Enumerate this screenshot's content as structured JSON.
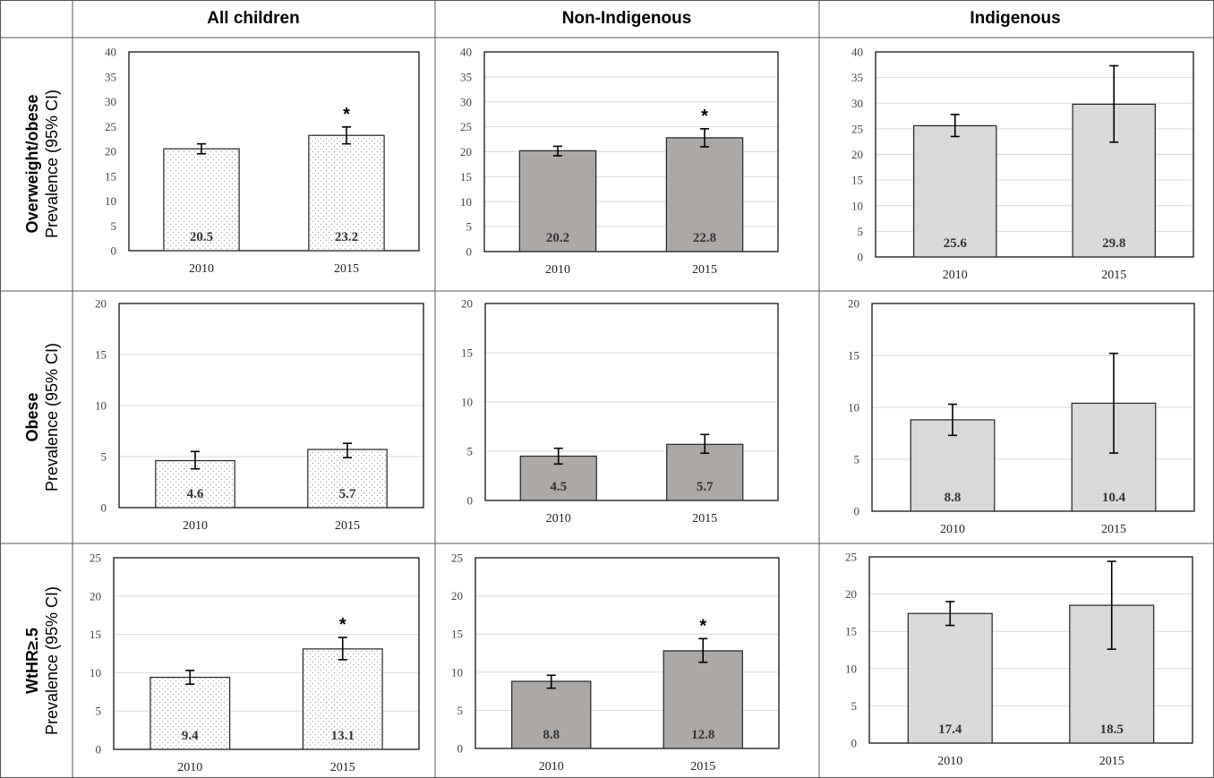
{
  "table": {
    "column_headers": [
      "All children",
      "Non-Indigenous",
      "Indigenous"
    ],
    "row_labels": [
      {
        "main": "Overweight/obese",
        "sub": "Prevalence (95% CI)"
      },
      {
        "main": "Obese",
        "sub": "Prevalence (95% CI)"
      },
      {
        "main": "WtHR≥.5",
        "sub": "Prevalence (95% CI)"
      }
    ]
  },
  "colors": {
    "all_children_fill": "#ffffff",
    "non_indigenous_fill": "#aca8a6",
    "indigenous_fill": "#d9d9d9",
    "bar_stroke": "#222222",
    "gridline": "#d9d9d9",
    "cell_border": "#555555"
  },
  "chart_data": [
    {
      "type": "bar",
      "row": "Overweight/obese",
      "group": "All children",
      "categories": [
        "2010",
        "2015"
      ],
      "values": [
        20.5,
        23.2
      ],
      "ci_low": [
        19.5,
        21.5
      ],
      "ci_high": [
        21.5,
        24.9
      ],
      "significant": [
        "",
        "*"
      ],
      "ylim": [
        0,
        40
      ],
      "yticks": [
        "0",
        "5",
        "10",
        "15",
        "20",
        "25",
        "30",
        "35",
        "40"
      ],
      "pattern": "dotted",
      "grid": false
    },
    {
      "type": "bar",
      "row": "Overweight/obese",
      "group": "Non-Indigenous",
      "categories": [
        "2010",
        "2015"
      ],
      "values": [
        20.2,
        22.8
      ],
      "ci_low": [
        19.2,
        21.0
      ],
      "ci_high": [
        21.1,
        24.6
      ],
      "significant": [
        "",
        "*"
      ],
      "ylim": [
        0,
        40
      ],
      "yticks": [
        "0",
        "5",
        "10",
        "15",
        "20",
        "25",
        "30",
        "35",
        "40"
      ],
      "pattern": "solid",
      "grid": true
    },
    {
      "type": "bar",
      "row": "Overweight/obese",
      "group": "Indigenous",
      "categories": [
        "2010",
        "2015"
      ],
      "values": [
        25.6,
        29.8
      ],
      "ci_low": [
        23.5,
        22.4
      ],
      "ci_high": [
        27.8,
        37.3
      ],
      "significant": [
        "",
        ""
      ],
      "ylim": [
        0,
        40
      ],
      "yticks": [
        "0",
        "5",
        "10",
        "15",
        "20",
        "25",
        "30",
        "35",
        "40"
      ],
      "pattern": "solid",
      "grid": true
    },
    {
      "type": "bar",
      "row": "Obese",
      "group": "All children",
      "categories": [
        "2010",
        "2015"
      ],
      "values": [
        4.6,
        5.7
      ],
      "ci_low": [
        3.8,
        4.9
      ],
      "ci_high": [
        5.5,
        6.3
      ],
      "significant": [
        "",
        ""
      ],
      "ylim": [
        0,
        20
      ],
      "yticks": [
        "0",
        "5",
        "10",
        "15",
        "20"
      ],
      "pattern": "dotted",
      "grid": true
    },
    {
      "type": "bar",
      "row": "Obese",
      "group": "Non-Indigenous",
      "categories": [
        "2010",
        "2015"
      ],
      "values": [
        4.5,
        5.7
      ],
      "ci_low": [
        3.7,
        4.8
      ],
      "ci_high": [
        5.3,
        6.7
      ],
      "significant": [
        "",
        ""
      ],
      "ylim": [
        0,
        20
      ],
      "yticks": [
        "0",
        "5",
        "10",
        "15",
        "20"
      ],
      "pattern": "solid",
      "grid": true
    },
    {
      "type": "bar",
      "row": "Obese",
      "group": "Indigenous",
      "categories": [
        "2010",
        "2015"
      ],
      "values": [
        8.8,
        10.4
      ],
      "ci_low": [
        7.3,
        5.6
      ],
      "ci_high": [
        10.3,
        15.2
      ],
      "significant": [
        "",
        ""
      ],
      "ylim": [
        0,
        20
      ],
      "yticks": [
        "0",
        "5",
        "10",
        "15",
        "20"
      ],
      "pattern": "solid",
      "grid": true
    },
    {
      "type": "bar",
      "row": "WtHR≥.5",
      "group": "All children",
      "categories": [
        "2010",
        "2015"
      ],
      "values": [
        9.4,
        13.1
      ],
      "ci_low": [
        8.5,
        11.7
      ],
      "ci_high": [
        10.3,
        14.6
      ],
      "significant": [
        "",
        "*"
      ],
      "ylim": [
        0,
        25
      ],
      "yticks": [
        "0",
        "5",
        "10",
        "15",
        "20",
        "25"
      ],
      "pattern": "dotted",
      "grid": true
    },
    {
      "type": "bar",
      "row": "WtHR≥.5",
      "group": "Non-Indigenous",
      "categories": [
        "2010",
        "2015"
      ],
      "values": [
        8.8,
        12.8
      ],
      "ci_low": [
        7.9,
        11.3
      ],
      "ci_high": [
        9.6,
        14.4
      ],
      "significant": [
        "",
        "*"
      ],
      "ylim": [
        0,
        25
      ],
      "yticks": [
        "0",
        "5",
        "10",
        "15",
        "20",
        "25"
      ],
      "pattern": "solid",
      "grid": true
    },
    {
      "type": "bar",
      "row": "WtHR≥.5",
      "group": "Indigenous",
      "categories": [
        "2010",
        "2015"
      ],
      "values": [
        17.4,
        18.5
      ],
      "ci_low": [
        15.8,
        12.6
      ],
      "ci_high": [
        19.0,
        24.4
      ],
      "significant": [
        "",
        ""
      ],
      "ylim": [
        0,
        25
      ],
      "yticks": [
        "0",
        "5",
        "10",
        "15",
        "20",
        "25"
      ],
      "pattern": "solid",
      "grid": true
    }
  ]
}
